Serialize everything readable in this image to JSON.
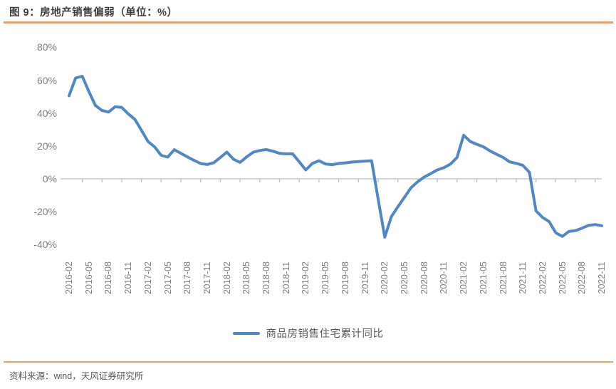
{
  "figure": {
    "title": "图 9：房地产销售偏弱（单位：%）",
    "source_note": "资料来源：wind，天风证券研究所"
  },
  "legend": {
    "label": "商品房销售住宅累计同比"
  },
  "colors": {
    "line_blue": "#4f87c7",
    "accent_orange": "#f2a05a",
    "axis_gray": "#bfbfbf",
    "tick_label_gray": "#7f7f7f",
    "title_gray": "#3f3f3f",
    "source_gray": "#595959"
  },
  "chart_data": {
    "type": "line",
    "title": "图 9：房地产销售偏弱（单位：%）",
    "ylabel": "",
    "xlabel": "",
    "ylim": [
      -40,
      80
    ],
    "grid": false,
    "legend_position": "bottom",
    "y_ticks": [
      80,
      60,
      40,
      20,
      0,
      -20,
      -40
    ],
    "y_tick_labels": [
      "80%",
      "60%",
      "40%",
      "20%",
      "0%",
      "-20%",
      "-40%"
    ],
    "x_tick_labels": [
      "2016-02",
      "2016-05",
      "2016-08",
      "2016-11",
      "2017-02",
      "2017-05",
      "2017-08",
      "2017-11",
      "2018-02",
      "2018-05",
      "2018-08",
      "2018-11",
      "2019-02",
      "2019-05",
      "2019-08",
      "2019-11",
      "2020-02",
      "2020-05",
      "2020-08",
      "2020-11",
      "2021-02",
      "2021-05",
      "2021-08",
      "2021-11",
      "2022-02",
      "2022-05",
      "2022-08",
      "2022-11"
    ],
    "series": [
      {
        "name": "商品房销售住宅累计同比",
        "color": "#4f87c7",
        "x": [
          "2016-02",
          "2016-03",
          "2016-04",
          "2016-05",
          "2016-06",
          "2016-07",
          "2016-08",
          "2016-09",
          "2016-10",
          "2016-11",
          "2016-12",
          "2017-01",
          "2017-02",
          "2017-03",
          "2017-04",
          "2017-05",
          "2017-06",
          "2017-07",
          "2017-08",
          "2017-09",
          "2017-10",
          "2017-11",
          "2017-12",
          "2018-01",
          "2018-02",
          "2018-03",
          "2018-04",
          "2018-05",
          "2018-06",
          "2018-07",
          "2018-08",
          "2018-09",
          "2018-10",
          "2018-11",
          "2018-12",
          "2019-01",
          "2019-02",
          "2019-03",
          "2019-04",
          "2019-05",
          "2019-06",
          "2019-07",
          "2019-08",
          "2019-09",
          "2019-10",
          "2019-11",
          "2019-12",
          "2020-01",
          "2020-02",
          "2020-03",
          "2020-04",
          "2020-05",
          "2020-06",
          "2020-07",
          "2020-08",
          "2020-09",
          "2020-10",
          "2020-11",
          "2020-12",
          "2021-01",
          "2021-02",
          "2021-03",
          "2021-04",
          "2021-05",
          "2021-06",
          "2021-07",
          "2021-08",
          "2021-09",
          "2021-10",
          "2021-11",
          "2021-12",
          "2022-01",
          "2022-02",
          "2022-03",
          "2022-04",
          "2022-05",
          "2022-06",
          "2022-07",
          "2022-08",
          "2022-09",
          "2022-10",
          "2022-11"
        ],
        "values": [
          50.5,
          61.3,
          62.4,
          53.2,
          44.6,
          41.6,
          40.6,
          43.8,
          43.4,
          39.5,
          36.2,
          29.5,
          22.7,
          19.5,
          14.3,
          13.2,
          17.7,
          15.5,
          13.3,
          11.2,
          9.3,
          8.7,
          9.8,
          13.0,
          16.2,
          11.9,
          10.0,
          13.3,
          16.2,
          17.2,
          17.8,
          16.8,
          15.5,
          15.2,
          15.2,
          10.3,
          5.4,
          9.4,
          11.0,
          9.0,
          8.6,
          9.3,
          9.7,
          10.2,
          10.5,
          10.8,
          11.0,
          -12.3,
          -35.5,
          -23.0,
          -17.0,
          -11.2,
          -5.4,
          -1.8,
          1.1,
          3.2,
          5.4,
          6.8,
          9.0,
          13.0,
          26.5,
          22.7,
          21.0,
          19.5,
          17.0,
          15.0,
          13.0,
          10.3,
          9.4,
          8.2,
          4.0,
          -19.5,
          -23.5,
          -26.0,
          -32.8,
          -35.0,
          -32.0,
          -31.5,
          -30.0,
          -28.3,
          -27.8,
          -28.5
        ]
      }
    ]
  }
}
